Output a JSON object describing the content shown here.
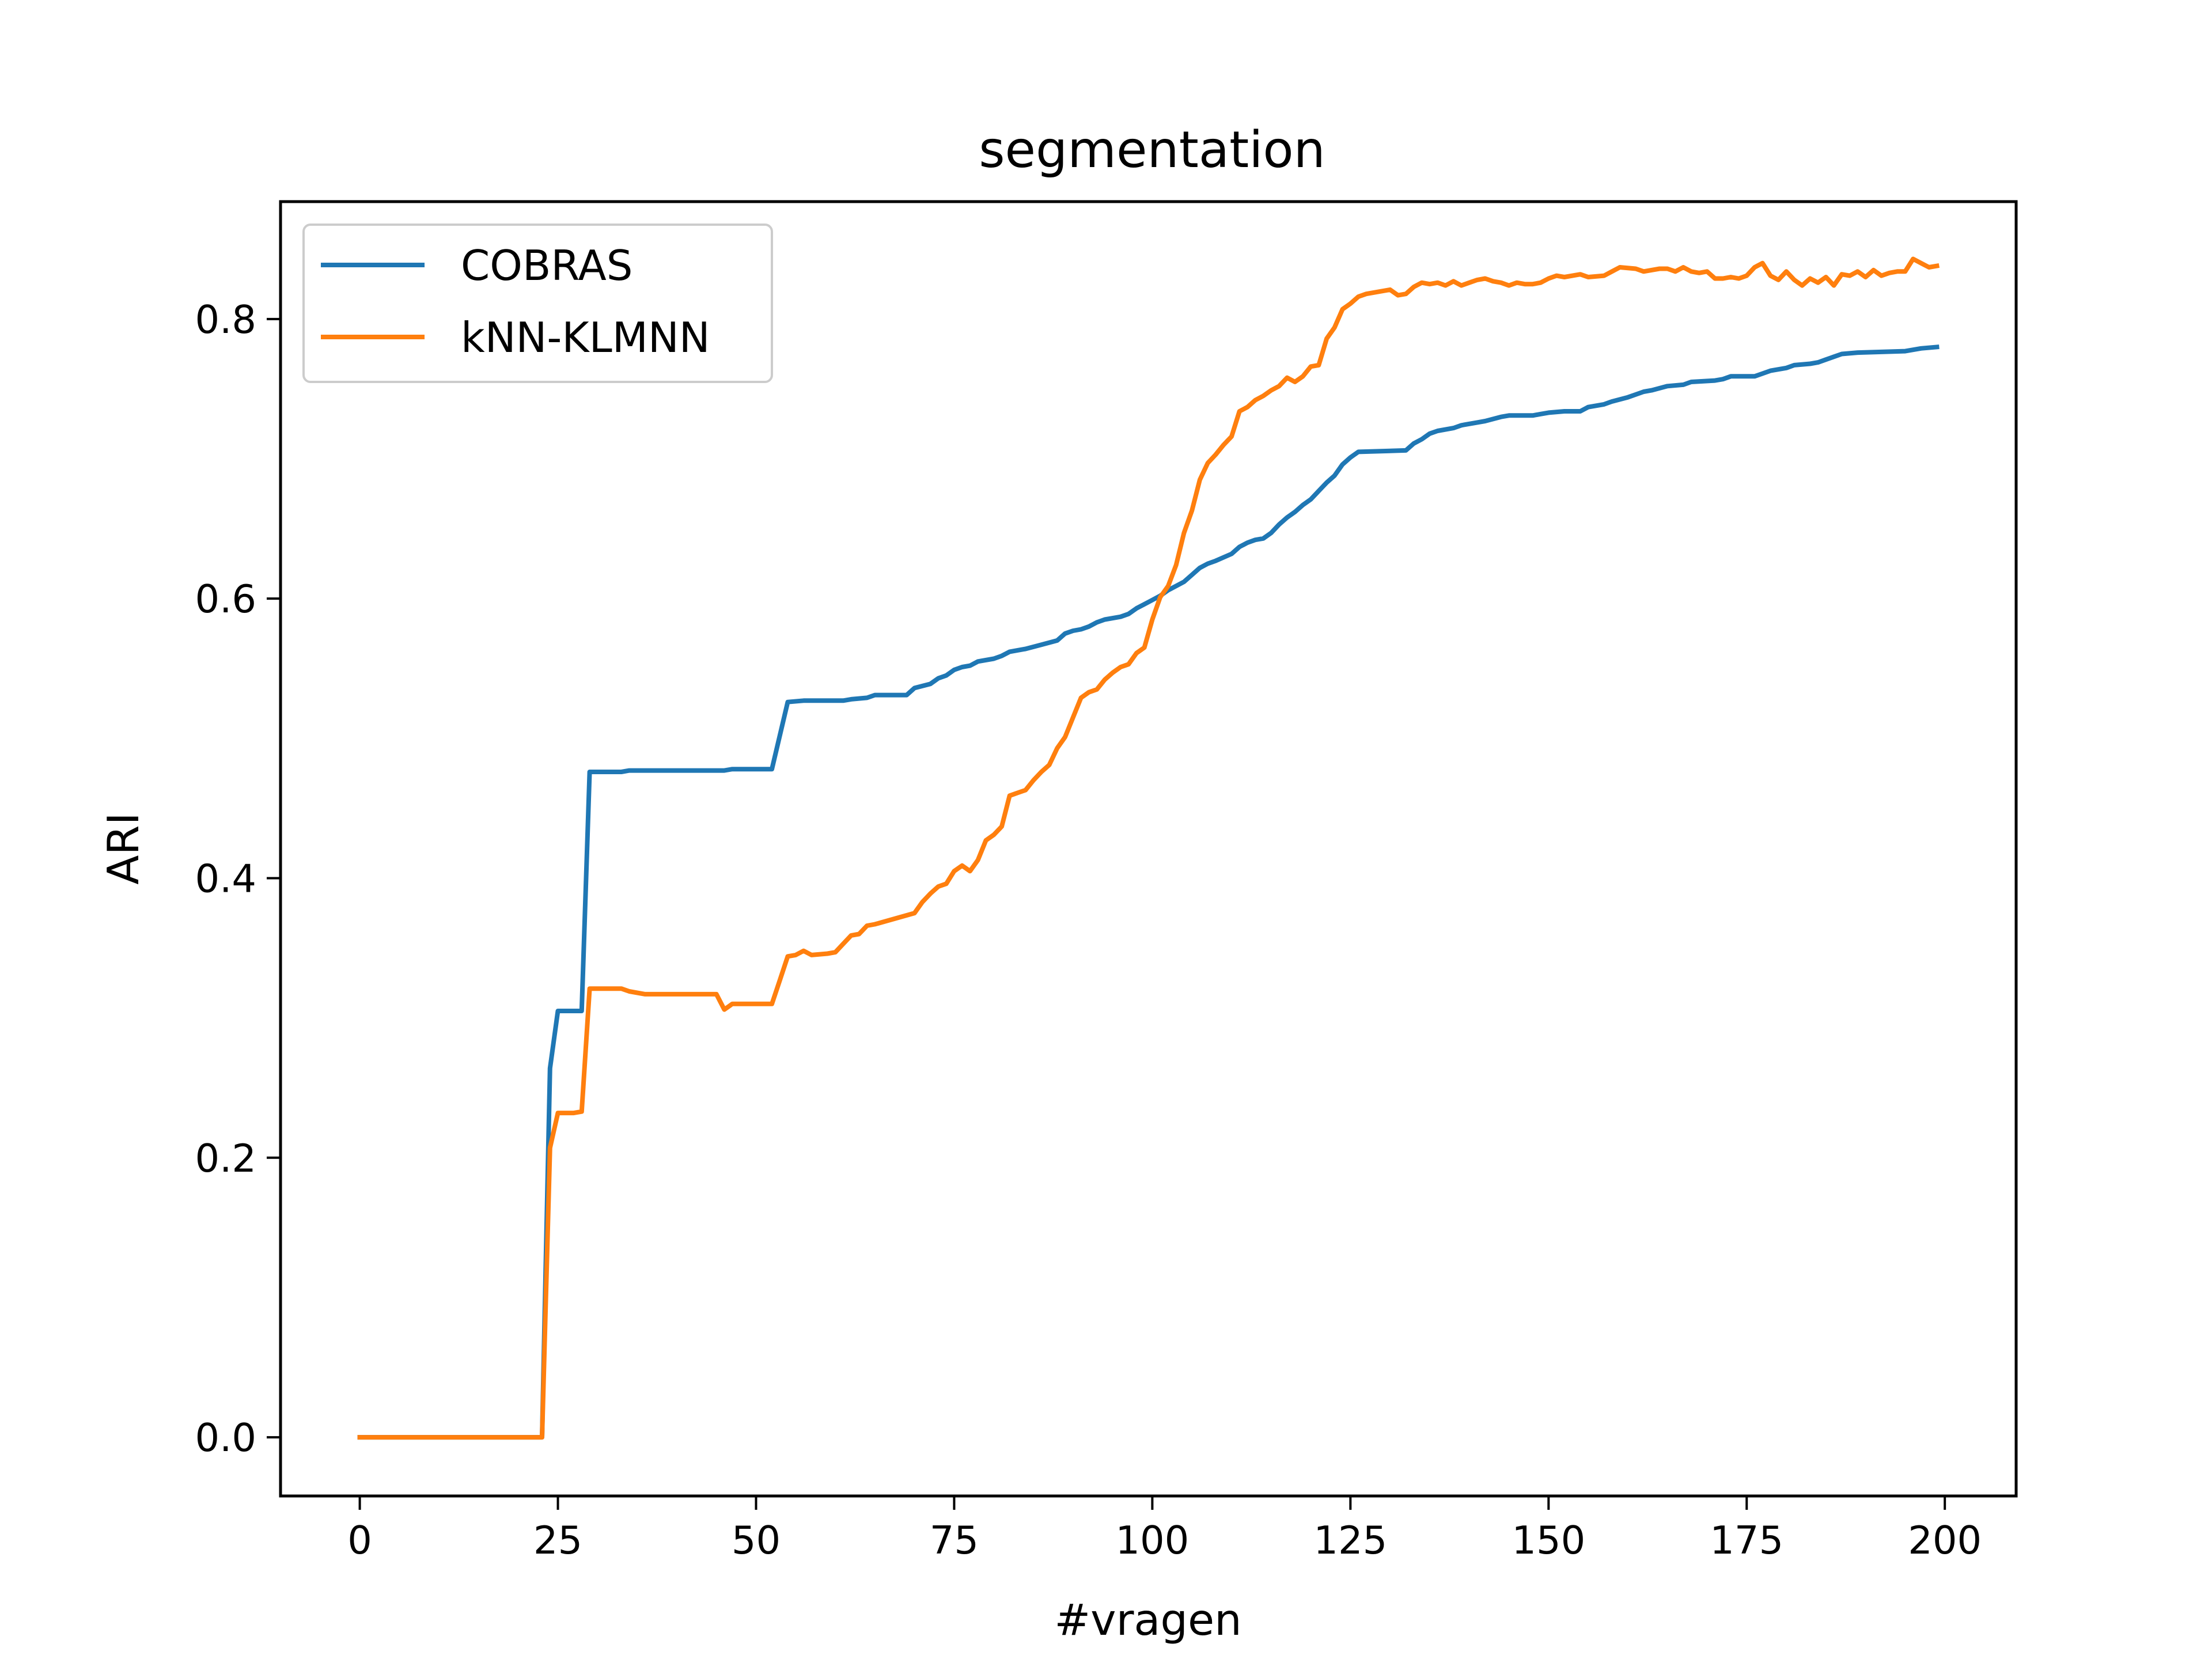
{
  "chart_data": {
    "type": "line",
    "title": "segmentation",
    "xlabel": "#vragen",
    "ylabel": "ARI",
    "xlim": [
      -10,
      209
    ],
    "ylim": [
      -0.042,
      0.884
    ],
    "x_ticks": [
      0,
      25,
      50,
      75,
      100,
      125,
      150,
      175,
      200
    ],
    "y_ticks": [
      0.0,
      0.2,
      0.4,
      0.6,
      0.8
    ],
    "x_tick_labels": [
      "0",
      "25",
      "50",
      "75",
      "100",
      "125",
      "150",
      "175",
      "200"
    ],
    "y_tick_labels": [
      "0.0",
      "0.2",
      "0.4",
      "0.6",
      "0.8"
    ],
    "grid": false,
    "legend_position": "top-left",
    "series": [
      {
        "name": "COBRAS",
        "color": "#1f77b4",
        "points": [
          [
            0,
            0.0
          ],
          [
            23,
            0.0
          ],
          [
            24,
            0.264
          ],
          [
            25,
            0.305
          ],
          [
            28,
            0.305
          ],
          [
            29,
            0.476
          ],
          [
            33,
            0.476
          ],
          [
            34,
            0.477
          ],
          [
            46,
            0.477
          ],
          [
            47,
            0.478
          ],
          [
            52,
            0.478
          ],
          [
            54,
            0.526
          ],
          [
            56,
            0.527
          ],
          [
            61,
            0.527
          ],
          [
            62,
            0.528
          ],
          [
            64,
            0.529
          ],
          [
            65,
            0.531
          ],
          [
            69,
            0.531
          ],
          [
            70,
            0.536
          ],
          [
            72,
            0.539
          ],
          [
            73,
            0.543
          ],
          [
            74,
            0.545
          ],
          [
            75,
            0.549
          ],
          [
            76,
            0.551
          ],
          [
            77,
            0.552
          ],
          [
            78,
            0.555
          ],
          [
            80,
            0.557
          ],
          [
            81,
            0.559
          ],
          [
            82,
            0.562
          ],
          [
            84,
            0.564
          ],
          [
            86,
            0.567
          ],
          [
            88,
            0.57
          ],
          [
            89,
            0.575
          ],
          [
            90,
            0.577
          ],
          [
            91,
            0.578
          ],
          [
            92,
            0.58
          ],
          [
            93,
            0.583
          ],
          [
            94,
            0.585
          ],
          [
            96,
            0.587
          ],
          [
            97,
            0.589
          ],
          [
            98,
            0.593
          ],
          [
            99,
            0.596
          ],
          [
            100,
            0.599
          ],
          [
            101,
            0.602
          ],
          [
            102,
            0.606
          ],
          [
            104,
            0.612
          ],
          [
            105,
            0.617
          ],
          [
            106,
            0.622
          ],
          [
            107,
            0.625
          ],
          [
            108,
            0.627
          ],
          [
            110,
            0.632
          ],
          [
            111,
            0.637
          ],
          [
            112,
            0.64
          ],
          [
            113,
            0.642
          ],
          [
            114,
            0.643
          ],
          [
            115,
            0.647
          ],
          [
            116,
            0.653
          ],
          [
            117,
            0.658
          ],
          [
            118,
            0.662
          ],
          [
            119,
            0.667
          ],
          [
            120,
            0.671
          ],
          [
            121,
            0.677
          ],
          [
            122,
            0.683
          ],
          [
            123,
            0.688
          ],
          [
            124,
            0.696
          ],
          [
            125,
            0.701
          ],
          [
            126,
            0.705
          ],
          [
            132,
            0.706
          ],
          [
            133,
            0.711
          ],
          [
            134,
            0.714
          ],
          [
            135,
            0.718
          ],
          [
            136,
            0.72
          ],
          [
            138,
            0.722
          ],
          [
            139,
            0.724
          ],
          [
            141,
            0.726
          ],
          [
            142,
            0.727
          ],
          [
            144,
            0.73
          ],
          [
            145,
            0.731
          ],
          [
            148,
            0.731
          ],
          [
            149,
            0.732
          ],
          [
            150,
            0.733
          ],
          [
            152,
            0.734
          ],
          [
            154,
            0.734
          ],
          [
            155,
            0.737
          ],
          [
            157,
            0.739
          ],
          [
            158,
            0.741
          ],
          [
            160,
            0.744
          ],
          [
            161,
            0.746
          ],
          [
            162,
            0.748
          ],
          [
            163,
            0.749
          ],
          [
            165,
            0.752
          ],
          [
            167,
            0.753
          ],
          [
            168,
            0.755
          ],
          [
            171,
            0.756
          ],
          [
            172,
            0.757
          ],
          [
            173,
            0.759
          ],
          [
            176,
            0.759
          ],
          [
            177,
            0.761
          ],
          [
            178,
            0.763
          ],
          [
            180,
            0.765
          ],
          [
            181,
            0.767
          ],
          [
            183,
            0.768
          ],
          [
            184,
            0.769
          ],
          [
            185,
            0.771
          ],
          [
            186,
            0.773
          ],
          [
            187,
            0.775
          ],
          [
            189,
            0.776
          ],
          [
            195,
            0.777
          ],
          [
            197,
            0.779
          ],
          [
            199,
            0.78
          ]
        ]
      },
      {
        "name": "kNN-KLMNN",
        "color": "#ff7f0e",
        "points": [
          [
            0,
            0.0
          ],
          [
            23,
            0.0
          ],
          [
            24,
            0.207
          ],
          [
            25,
            0.232
          ],
          [
            27,
            0.232
          ],
          [
            28,
            0.233
          ],
          [
            29,
            0.321
          ],
          [
            33,
            0.321
          ],
          [
            34,
            0.319
          ],
          [
            36,
            0.317
          ],
          [
            45,
            0.317
          ],
          [
            46,
            0.306
          ],
          [
            47,
            0.31
          ],
          [
            52,
            0.31
          ],
          [
            53,
            0.327
          ],
          [
            54,
            0.344
          ],
          [
            55,
            0.345
          ],
          [
            56,
            0.348
          ],
          [
            57,
            0.345
          ],
          [
            59,
            0.346
          ],
          [
            60,
            0.347
          ],
          [
            61,
            0.353
          ],
          [
            62,
            0.359
          ],
          [
            63,
            0.36
          ],
          [
            64,
            0.366
          ],
          [
            65,
            0.367
          ],
          [
            70,
            0.375
          ],
          [
            71,
            0.383
          ],
          [
            72,
            0.389
          ],
          [
            73,
            0.394
          ],
          [
            74,
            0.396
          ],
          [
            75,
            0.405
          ],
          [
            76,
            0.409
          ],
          [
            77,
            0.405
          ],
          [
            78,
            0.413
          ],
          [
            79,
            0.427
          ],
          [
            80,
            0.431
          ],
          [
            81,
            0.437
          ],
          [
            82,
            0.459
          ],
          [
            83,
            0.461
          ],
          [
            84,
            0.463
          ],
          [
            85,
            0.47
          ],
          [
            86,
            0.476
          ],
          [
            87,
            0.481
          ],
          [
            88,
            0.493
          ],
          [
            89,
            0.501
          ],
          [
            90,
            0.515
          ],
          [
            91,
            0.529
          ],
          [
            92,
            0.533
          ],
          [
            93,
            0.535
          ],
          [
            94,
            0.542
          ],
          [
            95,
            0.547
          ],
          [
            96,
            0.551
          ],
          [
            97,
            0.553
          ],
          [
            98,
            0.561
          ],
          [
            99,
            0.565
          ],
          [
            100,
            0.585
          ],
          [
            101,
            0.601
          ],
          [
            102,
            0.609
          ],
          [
            103,
            0.624
          ],
          [
            104,
            0.647
          ],
          [
            105,
            0.663
          ],
          [
            106,
            0.685
          ],
          [
            107,
            0.697
          ],
          [
            108,
            0.703
          ],
          [
            109,
            0.71
          ],
          [
            110,
            0.716
          ],
          [
            111,
            0.734
          ],
          [
            112,
            0.737
          ],
          [
            113,
            0.742
          ],
          [
            114,
            0.745
          ],
          [
            115,
            0.749
          ],
          [
            116,
            0.752
          ],
          [
            117,
            0.758
          ],
          [
            118,
            0.755
          ],
          [
            119,
            0.759
          ],
          [
            120,
            0.766
          ],
          [
            121,
            0.767
          ],
          [
            122,
            0.786
          ],
          [
            123,
            0.794
          ],
          [
            124,
            0.807
          ],
          [
            125,
            0.811
          ],
          [
            126,
            0.816
          ],
          [
            127,
            0.818
          ],
          [
            130,
            0.821
          ],
          [
            131,
            0.817
          ],
          [
            132,
            0.818
          ],
          [
            133,
            0.823
          ],
          [
            134,
            0.826
          ],
          [
            135,
            0.825
          ],
          [
            136,
            0.826
          ],
          [
            137,
            0.824
          ],
          [
            138,
            0.827
          ],
          [
            139,
            0.824
          ],
          [
            140,
            0.826
          ],
          [
            141,
            0.828
          ],
          [
            142,
            0.829
          ],
          [
            143,
            0.827
          ],
          [
            144,
            0.826
          ],
          [
            145,
            0.824
          ],
          [
            146,
            0.826
          ],
          [
            147,
            0.825
          ],
          [
            148,
            0.825
          ],
          [
            149,
            0.826
          ],
          [
            150,
            0.829
          ],
          [
            151,
            0.831
          ],
          [
            152,
            0.83
          ],
          [
            154,
            0.832
          ],
          [
            155,
            0.83
          ],
          [
            157,
            0.831
          ],
          [
            158,
            0.834
          ],
          [
            159,
            0.837
          ],
          [
            161,
            0.836
          ],
          [
            162,
            0.834
          ],
          [
            164,
            0.836
          ],
          [
            165,
            0.836
          ],
          [
            166,
            0.834
          ],
          [
            167,
            0.837
          ],
          [
            168,
            0.834
          ],
          [
            169,
            0.833
          ],
          [
            170,
            0.834
          ],
          [
            171,
            0.829
          ],
          [
            172,
            0.829
          ],
          [
            173,
            0.83
          ],
          [
            174,
            0.829
          ],
          [
            175,
            0.831
          ],
          [
            176,
            0.837
          ],
          [
            177,
            0.84
          ],
          [
            178,
            0.831
          ],
          [
            179,
            0.828
          ],
          [
            180,
            0.834
          ],
          [
            181,
            0.828
          ],
          [
            182,
            0.824
          ],
          [
            183,
            0.829
          ],
          [
            184,
            0.826
          ],
          [
            185,
            0.83
          ],
          [
            186,
            0.824
          ],
          [
            187,
            0.832
          ],
          [
            188,
            0.831
          ],
          [
            189,
            0.834
          ],
          [
            190,
            0.83
          ],
          [
            191,
            0.835
          ],
          [
            192,
            0.831
          ],
          [
            193,
            0.833
          ],
          [
            194,
            0.834
          ],
          [
            195,
            0.834
          ],
          [
            196,
            0.843
          ],
          [
            197,
            0.84
          ],
          [
            198,
            0.837
          ],
          [
            199,
            0.838
          ]
        ]
      }
    ]
  }
}
